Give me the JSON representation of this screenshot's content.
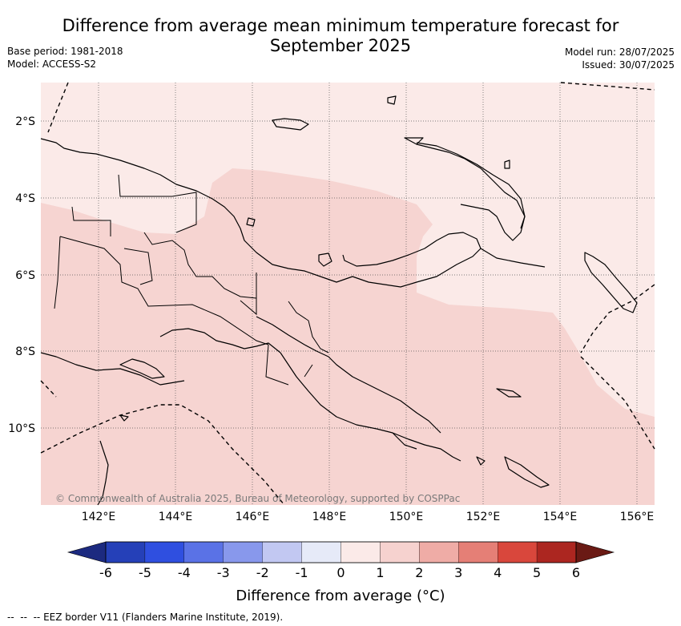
{
  "header": {
    "title_line1": "Difference from average mean minimum temperature forecast for",
    "title_line2": "September 2025",
    "base_period": "Base period: 1981-2018",
    "model": "Model: ACCESS-S2",
    "model_run": "Model run: 28/07/2025",
    "issued": "Issued: 30/07/2025"
  },
  "map": {
    "region": "Papua New Guinea",
    "lat_labels": [
      "2°S",
      "4°S",
      "6°S",
      "8°S",
      "10°S"
    ],
    "lon_labels": [
      "142°E",
      "144°E",
      "146°E",
      "148°E",
      "150°E",
      "152°E",
      "154°E",
      "156°E"
    ],
    "credit": "© Commonwealth of Australia 2025, Bureau of Meteorology, supported by COSPPac",
    "background_level": "0 to 1",
    "main_level": "1 to 2"
  },
  "colorbar": {
    "ticks": [
      "-6",
      "-5",
      "-4",
      "-3",
      "-2",
      "-1",
      "0",
      "1",
      "2",
      "3",
      "4",
      "5",
      "6"
    ],
    "title": "Difference from average (°C)",
    "colors": [
      "#1c2a80",
      "#2540b8",
      "#2f4fe0",
      "#5a72e6",
      "#8898ec",
      "#c2c8f2",
      "#e6eaf8",
      "#fbeae8",
      "#f6d2cf",
      "#efaca6",
      "#e57f76",
      "#d9473c",
      "#ac2620",
      "#6a1a14"
    ]
  },
  "legend": {
    "eez_note": "EEZ border V11 (Flanders Marine Institute, 2019)."
  }
}
